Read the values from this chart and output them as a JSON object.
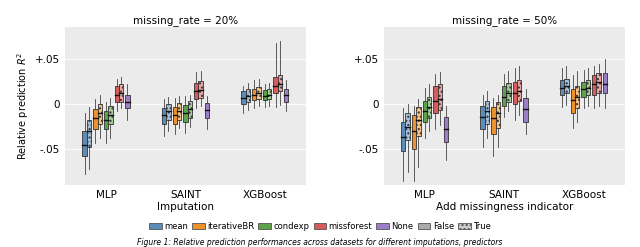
{
  "panel_titles": [
    "missing_rate = 20%",
    "missing_rate = 50%"
  ],
  "x_groups": [
    "MLP",
    "SAINT",
    "XGBoost"
  ],
  "imputation_methods": [
    "mean",
    "iterativeBR",
    "condexp",
    "missforest",
    "None"
  ],
  "colors": {
    "mean": "#5B8DB8",
    "iterativeBR": "#F0922B",
    "condexp": "#5BA24A",
    "missforest": "#D95B5B",
    "None": "#9B7DC8"
  },
  "ylabel": "Relative prediction $R^2$",
  "yticks": [
    -0.05,
    0.0,
    0.05
  ],
  "ytick_labels": [
    "-.05",
    "0",
    "+.05"
  ],
  "ylim": [
    -0.09,
    0.085
  ],
  "background_color": "#EBEBEB",
  "caption": "Figure 1: Relative prediction performances across datasets for different imputations, predictors",
  "boxes_20pct": {
    "MLP": {
      "mean": [
        {
          "q1": -0.058,
          "median": -0.045,
          "q3": -0.03,
          "whislo": -0.078,
          "whishi": -0.01,
          "hatch": false
        },
        {
          "q1": -0.048,
          "median": -0.03,
          "q3": -0.018,
          "whislo": -0.072,
          "whishi": -0.003,
          "hatch": true
        }
      ],
      "iterativeBR": [
        {
          "q1": -0.028,
          "median": -0.015,
          "q3": -0.006,
          "whislo": -0.043,
          "whishi": 0.005,
          "hatch": false
        },
        {
          "q1": -0.022,
          "median": -0.01,
          "q3": 0.0,
          "whislo": -0.038,
          "whishi": 0.01,
          "hatch": true
        }
      ],
      "condexp": [
        {
          "q1": -0.028,
          "median": -0.018,
          "q3": -0.008,
          "whislo": -0.043,
          "whishi": 0.002,
          "hatch": false
        },
        {
          "q1": -0.022,
          "median": -0.012,
          "q3": -0.002,
          "whislo": -0.038,
          "whishi": 0.007,
          "hatch": true
        }
      ],
      "missforest": [
        {
          "q1": 0.002,
          "median": 0.01,
          "q3": 0.02,
          "whislo": -0.008,
          "whishi": 0.028,
          "hatch": false
        },
        {
          "q1": 0.002,
          "median": 0.012,
          "q3": 0.022,
          "whislo": -0.005,
          "whishi": 0.03,
          "hatch": true
        }
      ],
      "None": [
        {
          "q1": -0.005,
          "median": 0.002,
          "q3": 0.01,
          "whislo": -0.018,
          "whishi": 0.022,
          "hatch": false
        }
      ]
    },
    "SAINT": {
      "mean": [
        {
          "q1": -0.022,
          "median": -0.012,
          "q3": -0.004,
          "whislo": -0.036,
          "whishi": 0.006,
          "hatch": false
        },
        {
          "q1": -0.018,
          "median": -0.008,
          "q3": 0.0,
          "whislo": -0.03,
          "whishi": 0.008,
          "hatch": true
        }
      ],
      "iterativeBR": [
        {
          "q1": -0.022,
          "median": -0.012,
          "q3": -0.003,
          "whislo": -0.033,
          "whishi": 0.007,
          "hatch": false
        },
        {
          "q1": -0.018,
          "median": -0.008,
          "q3": 0.001,
          "whislo": -0.027,
          "whishi": 0.009,
          "hatch": true
        }
      ],
      "condexp": [
        {
          "q1": -0.02,
          "median": -0.01,
          "q3": -0.001,
          "whislo": -0.032,
          "whishi": 0.009,
          "hatch": false
        },
        {
          "q1": -0.016,
          "median": -0.006,
          "q3": 0.003,
          "whislo": -0.026,
          "whishi": 0.01,
          "hatch": true
        }
      ],
      "missforest": [
        {
          "q1": 0.005,
          "median": 0.014,
          "q3": 0.023,
          "whislo": -0.004,
          "whishi": 0.035,
          "hatch": false
        },
        {
          "q1": 0.007,
          "median": 0.015,
          "q3": 0.025,
          "whislo": -0.002,
          "whishi": 0.037,
          "hatch": true
        }
      ],
      "None": [
        {
          "q1": -0.016,
          "median": -0.007,
          "q3": 0.001,
          "whislo": -0.028,
          "whishi": 0.009,
          "hatch": false
        }
      ]
    },
    "XGBoost": {
      "mean": [
        {
          "q1": 0.0,
          "median": 0.007,
          "q3": 0.014,
          "whislo": -0.01,
          "whishi": 0.02,
          "hatch": false
        },
        {
          "q1": 0.002,
          "median": 0.009,
          "q3": 0.016,
          "whislo": -0.007,
          "whishi": 0.023,
          "hatch": true
        }
      ],
      "iterativeBR": [
        {
          "q1": 0.004,
          "median": 0.01,
          "q3": 0.017,
          "whislo": -0.004,
          "whishi": 0.026,
          "hatch": false
        },
        {
          "q1": 0.005,
          "median": 0.012,
          "q3": 0.019,
          "whislo": -0.002,
          "whishi": 0.028,
          "hatch": true
        }
      ],
      "condexp": [
        {
          "q1": 0.004,
          "median": 0.009,
          "q3": 0.015,
          "whislo": -0.003,
          "whishi": 0.022,
          "hatch": false
        },
        {
          "q1": 0.005,
          "median": 0.01,
          "q3": 0.016,
          "whislo": -0.002,
          "whishi": 0.023,
          "hatch": true
        }
      ],
      "missforest": [
        {
          "q1": 0.012,
          "median": 0.02,
          "q3": 0.03,
          "whislo": -0.003,
          "whishi": 0.068,
          "hatch": false
        },
        {
          "q1": 0.014,
          "median": 0.022,
          "q3": 0.032,
          "whislo": -0.001,
          "whishi": 0.07,
          "hatch": true
        }
      ],
      "None": [
        {
          "q1": 0.002,
          "median": 0.01,
          "q3": 0.017,
          "whislo": -0.008,
          "whishi": 0.027,
          "hatch": false
        }
      ]
    }
  },
  "boxes_50pct": {
    "MLP": {
      "mean": [
        {
          "q1": -0.052,
          "median": -0.037,
          "q3": -0.02,
          "whislo": -0.085,
          "whishi": -0.005,
          "hatch": false
        },
        {
          "q1": -0.04,
          "median": -0.025,
          "q3": -0.01,
          "whislo": -0.075,
          "whishi": 0.0,
          "hatch": true
        }
      ],
      "iterativeBR": [
        {
          "q1": -0.05,
          "median": -0.03,
          "q3": -0.012,
          "whislo": -0.085,
          "whishi": -0.002,
          "hatch": false
        },
        {
          "q1": -0.035,
          "median": -0.018,
          "q3": -0.003,
          "whislo": -0.07,
          "whishi": 0.005,
          "hatch": true
        }
      ],
      "condexp": [
        {
          "q1": -0.02,
          "median": -0.008,
          "q3": 0.003,
          "whislo": -0.038,
          "whishi": 0.018,
          "hatch": false
        },
        {
          "q1": -0.015,
          "median": -0.003,
          "q3": 0.008,
          "whislo": -0.03,
          "whishi": 0.022,
          "hatch": true
        }
      ],
      "missforest": [
        {
          "q1": -0.01,
          "median": 0.003,
          "q3": 0.02,
          "whislo": -0.028,
          "whishi": 0.033,
          "hatch": false
        },
        {
          "q1": -0.007,
          "median": 0.005,
          "q3": 0.022,
          "whislo": -0.023,
          "whishi": 0.035,
          "hatch": true
        }
      ],
      "None": [
        {
          "q1": -0.042,
          "median": -0.028,
          "q3": -0.014,
          "whislo": -0.062,
          "whishi": -0.002,
          "hatch": false
        }
      ]
    },
    "SAINT": {
      "mean": [
        {
          "q1": -0.028,
          "median": -0.014,
          "q3": -0.002,
          "whislo": -0.048,
          "whishi": 0.01,
          "hatch": false
        },
        {
          "q1": -0.022,
          "median": -0.008,
          "q3": 0.003,
          "whislo": -0.038,
          "whishi": 0.014,
          "hatch": true
        }
      ],
      "iterativeBR": [
        {
          "q1": -0.033,
          "median": -0.016,
          "q3": -0.003,
          "whislo": -0.058,
          "whishi": 0.007,
          "hatch": false
        },
        {
          "q1": -0.027,
          "median": -0.01,
          "q3": 0.002,
          "whislo": -0.048,
          "whishi": 0.01,
          "hatch": true
        }
      ],
      "condexp": [
        {
          "q1": -0.002,
          "median": 0.008,
          "q3": 0.02,
          "whislo": -0.014,
          "whishi": 0.033,
          "hatch": false
        },
        {
          "q1": 0.002,
          "median": 0.012,
          "q3": 0.023,
          "whislo": -0.008,
          "whishi": 0.036,
          "hatch": true
        }
      ],
      "missforest": [
        {
          "q1": 0.0,
          "median": 0.012,
          "q3": 0.024,
          "whislo": -0.018,
          "whishi": 0.04,
          "hatch": false
        },
        {
          "q1": 0.003,
          "median": 0.014,
          "q3": 0.026,
          "whislo": -0.012,
          "whishi": 0.042,
          "hatch": true
        }
      ],
      "None": [
        {
          "q1": -0.02,
          "median": -0.006,
          "q3": 0.007,
          "whislo": -0.033,
          "whishi": 0.017,
          "hatch": false
        }
      ]
    },
    "XGBoost": {
      "mean": [
        {
          "q1": 0.01,
          "median": 0.018,
          "q3": 0.026,
          "whislo": -0.003,
          "whishi": 0.04,
          "hatch": false
        },
        {
          "q1": 0.012,
          "median": 0.02,
          "q3": 0.028,
          "whislo": -0.001,
          "whishi": 0.042,
          "hatch": true
        }
      ],
      "iterativeBR": [
        {
          "q1": -0.01,
          "median": 0.004,
          "q3": 0.016,
          "whislo": -0.027,
          "whishi": 0.032,
          "hatch": false
        },
        {
          "q1": -0.005,
          "median": 0.008,
          "q3": 0.02,
          "whislo": -0.02,
          "whishi": 0.036,
          "hatch": true
        }
      ],
      "condexp": [
        {
          "q1": 0.008,
          "median": 0.016,
          "q3": 0.024,
          "whislo": -0.004,
          "whishi": 0.038,
          "hatch": false
        },
        {
          "q1": 0.01,
          "median": 0.018,
          "q3": 0.026,
          "whislo": -0.002,
          "whishi": 0.04,
          "hatch": true
        }
      ],
      "missforest": [
        {
          "q1": 0.01,
          "median": 0.022,
          "q3": 0.032,
          "whislo": -0.004,
          "whishi": 0.042,
          "hatch": false
        },
        {
          "q1": 0.012,
          "median": 0.024,
          "q3": 0.034,
          "whislo": -0.002,
          "whishi": 0.044,
          "hatch": true
        }
      ],
      "None": [
        {
          "q1": 0.012,
          "median": 0.022,
          "q3": 0.034,
          "whislo": -0.004,
          "whishi": 0.05,
          "hatch": false
        }
      ]
    }
  }
}
